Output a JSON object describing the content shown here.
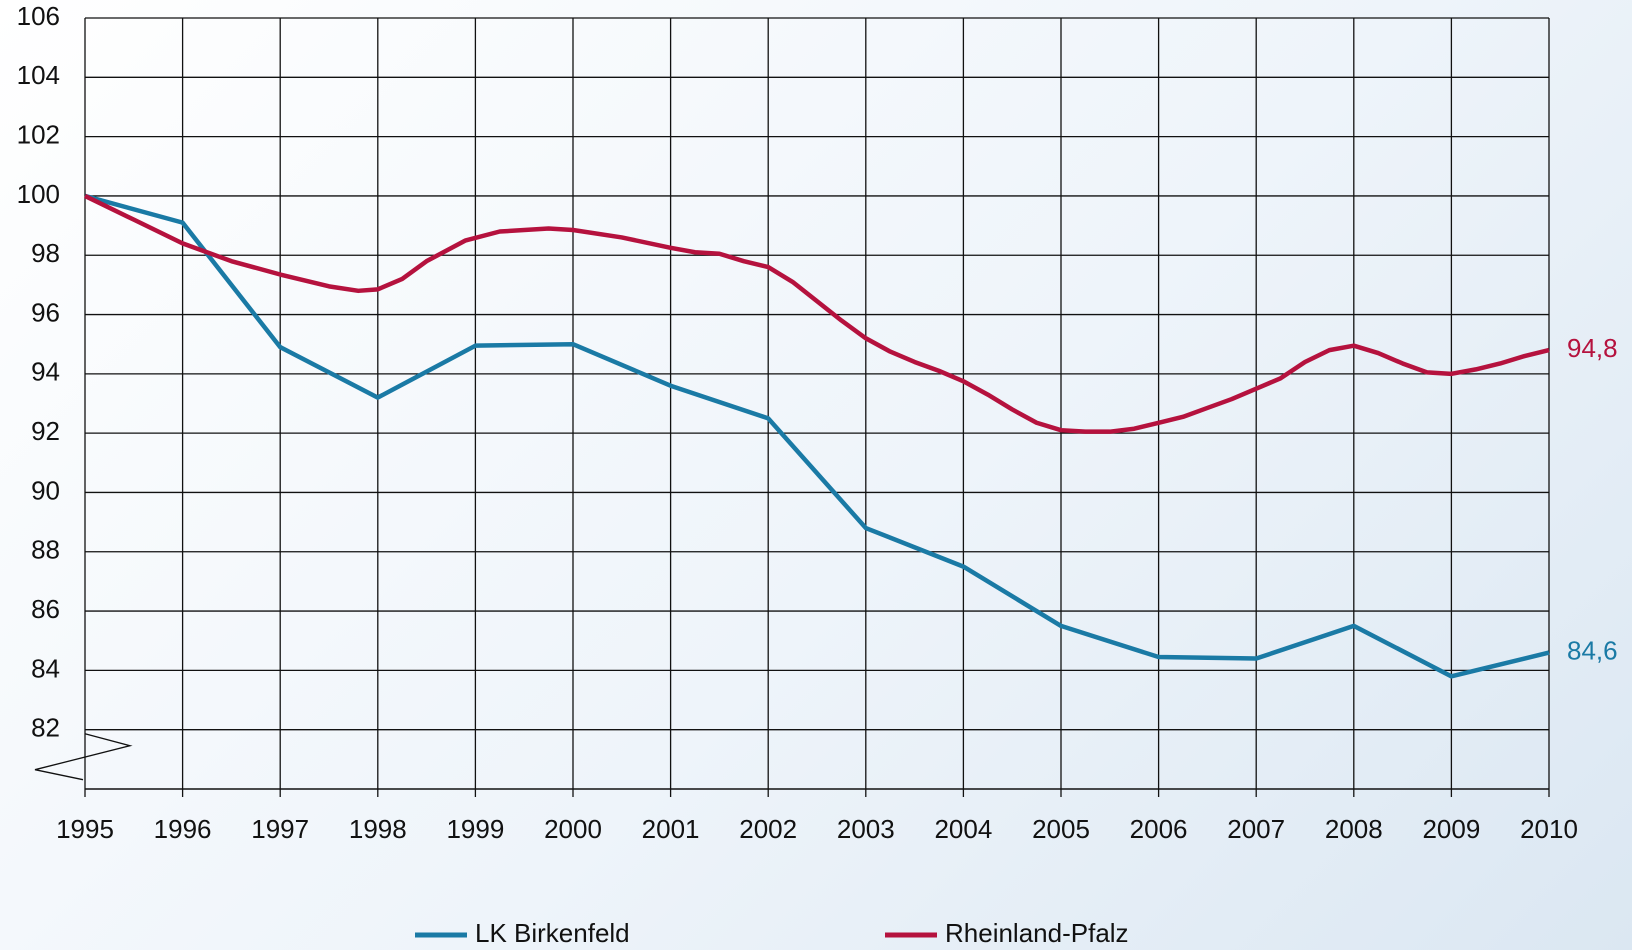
{
  "chart_data": {
    "type": "line",
    "xlim": [
      1995,
      2010
    ],
    "xticks": [
      1995,
      1996,
      1997,
      1998,
      1999,
      2000,
      2001,
      2002,
      2003,
      2004,
      2005,
      2006,
      2007,
      2008,
      2009,
      2010
    ],
    "ylim": [
      80,
      106
    ],
    "yticks": [
      82,
      84,
      86,
      88,
      90,
      92,
      94,
      96,
      98,
      100,
      102,
      104,
      106
    ],
    "grid": true,
    "legend": "bottom",
    "series": [
      {
        "name": "LK Birkenfeld",
        "color": "#1a7aa5",
        "x": [
          1995,
          1996,
          1997,
          1998,
          1999,
          2000,
          2001,
          2002,
          2003,
          2004,
          2005,
          2006,
          2007,
          2008,
          2009,
          2010
        ],
        "values": [
          100,
          99.1,
          94.9,
          93.2,
          94.95,
          95.0,
          93.6,
          92.5,
          88.8,
          87.5,
          85.5,
          84.45,
          84.4,
          85.5,
          83.8,
          84.6
        ],
        "value_labels": [
          null,
          null,
          null,
          null,
          null,
          null,
          null,
          null,
          null,
          null,
          null,
          null,
          null,
          null,
          null,
          "84,6"
        ]
      },
      {
        "name": "Rheinland-Pfalz",
        "color": "#b5123e",
        "x": [
          1995,
          1995.5,
          1996,
          1996.5,
          1997,
          1997.5,
          1997.8,
          1998,
          1998.25,
          1998.5,
          1998.9,
          1999.25,
          1999.75,
          2000,
          2000.5,
          2001,
          2001.25,
          2001.5,
          2001.75,
          2002,
          2002.25,
          2002.75,
          2003,
          2003.25,
          2003.5,
          2003.75,
          2004,
          2004.25,
          2004.5,
          2004.75,
          2005,
          2005.25,
          2005.5,
          2005.75,
          2006,
          2006.25,
          2006.5,
          2006.75,
          2007,
          2007.25,
          2007.5,
          2007.75,
          2008,
          2008.25,
          2008.5,
          2008.75,
          2009,
          2009.25,
          2009.5,
          2009.75,
          2010
        ],
        "values": [
          100,
          99.2,
          98.4,
          97.8,
          97.35,
          96.95,
          96.8,
          96.85,
          97.2,
          97.8,
          98.5,
          98.8,
          98.9,
          98.85,
          98.6,
          98.25,
          98.1,
          98.05,
          97.8,
          97.6,
          97.1,
          95.8,
          95.2,
          94.75,
          94.4,
          94.1,
          93.75,
          93.3,
          92.8,
          92.35,
          92.1,
          92.05,
          92.05,
          92.15,
          92.35,
          92.55,
          92.85,
          93.15,
          93.5,
          93.85,
          94.4,
          94.8,
          94.95,
          94.7,
          94.35,
          94.05,
          94.0,
          94.15,
          94.35,
          94.6,
          94.8
        ],
        "value_labels": [
          null,
          null,
          null,
          null,
          null,
          null,
          null,
          null,
          null,
          null,
          null,
          null,
          null,
          null,
          null,
          null,
          null,
          null,
          null,
          null,
          null,
          null,
          null,
          null,
          null,
          null,
          null,
          null,
          null,
          null,
          null,
          null,
          null,
          null,
          null,
          null,
          null,
          null,
          null,
          null,
          null,
          null,
          null,
          null,
          null,
          null,
          null,
          null,
          null,
          null,
          "94,8"
        ]
      }
    ]
  }
}
